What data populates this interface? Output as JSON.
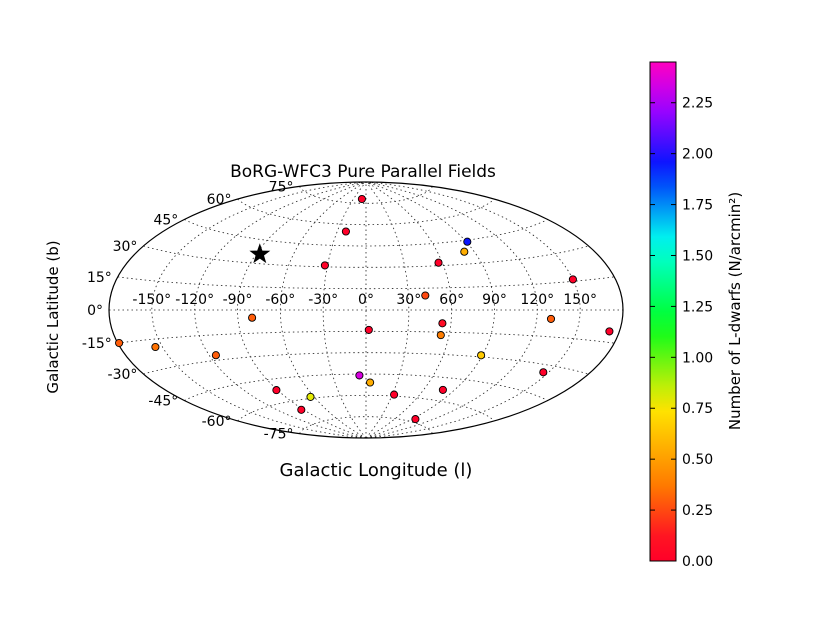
{
  "chart_data": {
    "type": "scatter",
    "projection": "aitoff",
    "title": "BoRG-WFC3 Pure Parallel Fields",
    "xlabel": "Galactic Longitude (l)",
    "ylabel": "Galactic Latitude (b)",
    "xlim": [
      -180,
      180
    ],
    "ylim": [
      -90,
      90
    ],
    "grid": true,
    "lon_ticks": [
      {
        "value": -150,
        "label": "-150°"
      },
      {
        "value": -120,
        "label": "-120°"
      },
      {
        "value": -90,
        "label": "-90°"
      },
      {
        "value": -60,
        "label": "-60°"
      },
      {
        "value": -30,
        "label": "-30°"
      },
      {
        "value": 0,
        "label": "0°"
      },
      {
        "value": 30,
        "label": "30°"
      },
      {
        "value": 60,
        "label": "60°"
      },
      {
        "value": 90,
        "label": "90°"
      },
      {
        "value": 120,
        "label": "120°"
      },
      {
        "value": 150,
        "label": "150°"
      }
    ],
    "lat_ticks": [
      {
        "value": 75,
        "label": "75°"
      },
      {
        "value": 60,
        "label": "60°"
      },
      {
        "value": 45,
        "label": "45°"
      },
      {
        "value": 30,
        "label": "30°"
      },
      {
        "value": 15,
        "label": "15°"
      },
      {
        "value": 0,
        "label": "0°"
      },
      {
        "value": -15,
        "label": "-15°"
      },
      {
        "value": -30,
        "label": "-30°"
      },
      {
        "value": -45,
        "label": "-45°"
      },
      {
        "value": -60,
        "label": "-60°"
      },
      {
        "value": -75,
        "label": "-75°"
      }
    ],
    "colorbar": {
      "label": "Number of L-dwarfs (N/arcmin²)",
      "range": [
        0,
        2.45
      ],
      "ticks": [
        "0.00",
        "0.25",
        "0.50",
        "0.75",
        "1.00",
        "1.25",
        "1.50",
        "1.75",
        "2.00",
        "2.25"
      ],
      "colormap": "gist_rainbow"
    },
    "points": [
      {
        "l": 42,
        "b": 10,
        "n": 0.25
      },
      {
        "l": -32,
        "b": 31,
        "n": 0.08
      },
      {
        "l": 57,
        "b": 32,
        "n": 0.05
      },
      {
        "l": 82,
        "b": 38,
        "n": 0.55
      },
      {
        "l": 91,
        "b": 44,
        "n": 1.95
      },
      {
        "l": -21,
        "b": 55,
        "n": 0.05
      },
      {
        "l": -10,
        "b": 78,
        "n": 0.02
      },
      {
        "l": 150,
        "b": 16,
        "n": 0.05
      },
      {
        "l": -80,
        "b": -5,
        "n": 0.3
      },
      {
        "l": 2,
        "b": -14,
        "n": 0.05
      },
      {
        "l": 54,
        "b": -9,
        "n": 0.1
      },
      {
        "l": 54,
        "b": -17,
        "n": 0.38
      },
      {
        "l": 130,
        "b": -5,
        "n": 0.3
      },
      {
        "l": 173,
        "b": -10,
        "n": 0.05
      },
      {
        "l": -155,
        "b": -19,
        "n": 0.35
      },
      {
        "l": 89,
        "b": -29,
        "n": 0.65
      },
      {
        "l": -115,
        "b": -27,
        "n": 0.3
      },
      {
        "l": 146,
        "b": -34,
        "n": 0.06
      },
      {
        "l": -6,
        "b": -46,
        "n": 2.35
      },
      {
        "l": 4,
        "b": -51,
        "n": 0.55
      },
      {
        "l": -91,
        "b": -52,
        "n": 0.05
      },
      {
        "l": -93,
        "b": -66,
        "n": 0.05
      },
      {
        "l": -64,
        "b": -59,
        "n": 0.8
      },
      {
        "l": 32,
        "b": -59,
        "n": 0.03
      },
      {
        "l": 79,
        "b": -53,
        "n": 0.05
      },
      {
        "l": -179,
        "b": -15,
        "n": 0.3
      },
      {
        "l": 95,
        "b": -73,
        "n": 0.05
      }
    ],
    "marker_star": {
      "l": -87,
      "b": 36
    }
  }
}
